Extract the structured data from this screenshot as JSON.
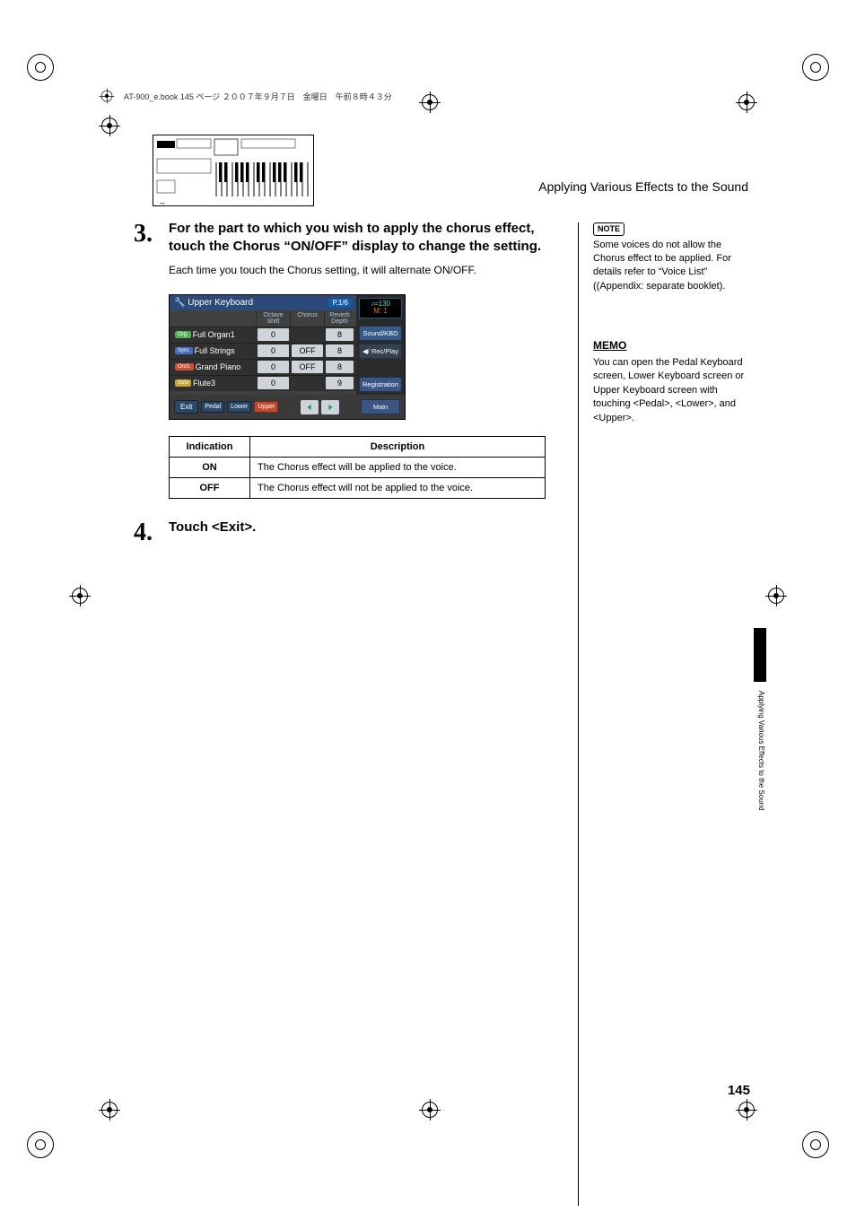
{
  "meta": {
    "header_line": "AT-900_e.book  145 ページ  ２００７年９月７日　金曜日　午前８時４３分"
  },
  "section_title": "Applying Various Effects to the Sound",
  "vertical_tab_text": "Applying Various Effects to the Sound",
  "page_number": "145",
  "steps": {
    "s3": {
      "num": "3.",
      "heading": "For the part to which you wish to apply the chorus effect, touch the Chorus “ON/OFF” display to change the setting.",
      "desc": "Each time you touch the Chorus setting, it will alternate ON/OFF."
    },
    "s4": {
      "num": "4.",
      "heading": "Touch <Exit>."
    }
  },
  "ui": {
    "title": "Upper Keyboard",
    "page_ind": "P.1/6",
    "tempo_top": "♪=130",
    "tempo_bot": "M:      1",
    "head": {
      "oct": "Octave\nShift",
      "chor": "Chorus",
      "rev": "Reverb\nDepth"
    },
    "rows": [
      {
        "tag": "Org.",
        "tag_cls": "tag-org",
        "name": "Full Organ1",
        "oct": "0",
        "chor": "",
        "rev": "8"
      },
      {
        "tag": "Sym.",
        "tag_cls": "tag-sym",
        "name": "Full Strings",
        "oct": "0",
        "chor": "OFF",
        "rev": "8"
      },
      {
        "tag": "Orch.",
        "tag_cls": "tag-orch",
        "name": "Grand Piano",
        "oct": "0",
        "chor": "OFF",
        "rev": "8"
      },
      {
        "tag": "Solo",
        "tag_cls": "tag-solo",
        "name": "Flute3",
        "oct": "0",
        "chor": "",
        "rev": "9"
      }
    ],
    "side": {
      "sound": "Sound/KBD",
      "rec": "Rec/Play",
      "reg": "Registration",
      "main": "Main"
    },
    "footer": {
      "exit": "Exit",
      "pedal": "Pedal",
      "lower": "Lower",
      "upper": "Upper"
    },
    "colors": {
      "panel_bg": "#404040",
      "titlebar": "#2b4a7a",
      "cell_bg": "#cfd4da",
      "btn_blue": "#2a486a",
      "btn_red": "#c04830",
      "tempo_text": "#4fe0d0",
      "arrow_green": "#1a9a60"
    }
  },
  "table": {
    "head": {
      "c1": "Indication",
      "c2": "Description"
    },
    "rows": [
      {
        "ind": "ON",
        "desc": "The Chorus effect will be applied to the voice."
      },
      {
        "ind": "OFF",
        "desc": "The Chorus effect will not be applied to the voice."
      }
    ]
  },
  "side": {
    "note_label": "NOTE",
    "note_text": "Some voices do not allow the Chorus effect to be applied. For details refer to “Voice List” ((Appendix: separate booklet).",
    "memo_label": "MEMO",
    "memo_text": "You can open the Pedal Keyboard screen, Lower Keyboard screen or Upper Keyboard screen with touching <Pedal>, <Lower>, and <Upper>."
  }
}
